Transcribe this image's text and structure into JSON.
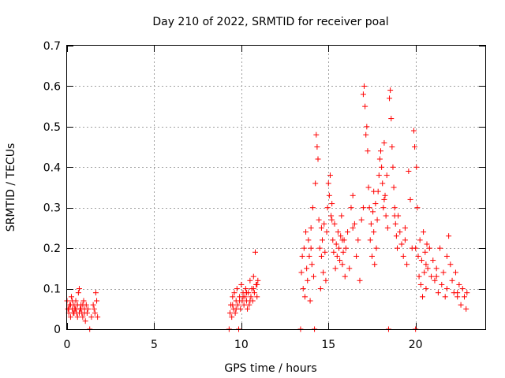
{
  "chart_data": {
    "type": "scatter",
    "title": "Day 210 of 2022, SRMTID for receiver poal",
    "xlabel": "GPS time / hours",
    "ylabel": "SRMTID / TECUs",
    "xlim": [
      0,
      24
    ],
    "ylim": [
      0,
      0.7
    ],
    "xticks": [
      0,
      5,
      10,
      15,
      20
    ],
    "yticks": [
      0,
      0.1,
      0.2,
      0.3,
      0.4,
      0.5,
      0.6,
      0.7
    ],
    "xtick_labels": [
      "0",
      "5",
      "10",
      "15",
      "20"
    ],
    "ytick_labels": [
      "0",
      "0.1",
      "0.2",
      "0.3",
      "0.4",
      "0.5",
      "0.6",
      "0.7"
    ],
    "grid": true,
    "marker": "+",
    "color": "#ff0000",
    "series": [
      {
        "name": "SRMTID",
        "points": [
          [
            0.0,
            0.07
          ],
          [
            0.05,
            0.05
          ],
          [
            0.1,
            0.04
          ],
          [
            0.15,
            0.06
          ],
          [
            0.2,
            0.03
          ],
          [
            0.25,
            0.08
          ],
          [
            0.3,
            0.05
          ],
          [
            0.35,
            0.04
          ],
          [
            0.4,
            0.06
          ],
          [
            0.45,
            0.05
          ],
          [
            0.5,
            0.07
          ],
          [
            0.55,
            0.04
          ],
          [
            0.6,
            0.03
          ],
          [
            0.65,
            0.09
          ],
          [
            0.7,
            0.1
          ],
          [
            0.75,
            0.05
          ],
          [
            0.8,
            0.06
          ],
          [
            0.85,
            0.04
          ],
          [
            0.9,
            0.03
          ],
          [
            0.95,
            0.07
          ],
          [
            1.0,
            0.05
          ],
          [
            1.05,
            0.02
          ],
          [
            1.1,
            0.06
          ],
          [
            1.15,
            0.04
          ],
          [
            1.2,
            0.05
          ],
          [
            1.3,
            0.0
          ],
          [
            1.4,
            0.03
          ],
          [
            1.5,
            0.06
          ],
          [
            1.55,
            0.05
          ],
          [
            1.6,
            0.04
          ],
          [
            1.65,
            0.09
          ],
          [
            1.7,
            0.07
          ],
          [
            1.75,
            0.03
          ],
          [
            0.1,
            0.05
          ],
          [
            0.2,
            0.06
          ],
          [
            0.3,
            0.07
          ],
          [
            0.4,
            0.04
          ],
          [
            0.5,
            0.05
          ],
          [
            0.6,
            0.06
          ],
          [
            0.7,
            0.04
          ],
          [
            0.8,
            0.05
          ],
          [
            0.9,
            0.06
          ],
          [
            1.0,
            0.04
          ],
          [
            9.3,
            0.0
          ],
          [
            9.35,
            0.04
          ],
          [
            9.4,
            0.06
          ],
          [
            9.45,
            0.03
          ],
          [
            9.5,
            0.08
          ],
          [
            9.55,
            0.05
          ],
          [
            9.6,
            0.09
          ],
          [
            9.65,
            0.04
          ],
          [
            9.7,
            0.07
          ],
          [
            9.75,
            0.1
          ],
          [
            9.8,
            0.06
          ],
          [
            9.85,
            0.0
          ],
          [
            9.9,
            0.08
          ],
          [
            9.95,
            0.05
          ],
          [
            10.0,
            0.11
          ],
          [
            10.05,
            0.07
          ],
          [
            10.1,
            0.09
          ],
          [
            10.15,
            0.06
          ],
          [
            10.2,
            0.08
          ],
          [
            10.25,
            0.1
          ],
          [
            10.3,
            0.07
          ],
          [
            10.35,
            0.05
          ],
          [
            10.4,
            0.09
          ],
          [
            10.45,
            0.06
          ],
          [
            10.5,
            0.12
          ],
          [
            10.55,
            0.08
          ],
          [
            10.6,
            0.1
          ],
          [
            10.65,
            0.07
          ],
          [
            10.7,
            0.13
          ],
          [
            10.75,
            0.09
          ],
          [
            10.8,
            0.19
          ],
          [
            10.85,
            0.11
          ],
          [
            10.9,
            0.08
          ],
          [
            10.95,
            0.12
          ],
          [
            9.5,
            0.06
          ],
          [
            9.7,
            0.05
          ],
          [
            9.9,
            0.07
          ],
          [
            10.1,
            0.08
          ],
          [
            10.3,
            0.09
          ],
          [
            10.5,
            0.07
          ],
          [
            10.7,
            0.1
          ],
          [
            10.9,
            0.11
          ],
          [
            13.4,
            0.0
          ],
          [
            13.45,
            0.14
          ],
          [
            13.5,
            0.18
          ],
          [
            13.55,
            0.1
          ],
          [
            13.6,
            0.2
          ],
          [
            13.65,
            0.08
          ],
          [
            13.7,
            0.24
          ],
          [
            13.75,
            0.15
          ],
          [
            13.8,
            0.12
          ],
          [
            13.85,
            0.22
          ],
          [
            13.9,
            0.18
          ],
          [
            13.95,
            0.07
          ],
          [
            14.0,
            0.25
          ],
          [
            14.05,
            0.16
          ],
          [
            14.1,
            0.3
          ],
          [
            14.15,
            0.13
          ],
          [
            14.2,
            0.0
          ],
          [
            14.25,
            0.36
          ],
          [
            14.3,
            0.48
          ],
          [
            14.35,
            0.45
          ],
          [
            14.4,
            0.42
          ],
          [
            14.45,
            0.27
          ],
          [
            14.5,
            0.2
          ],
          [
            14.55,
            0.1
          ],
          [
            14.6,
            0.18
          ],
          [
            14.65,
            0.22
          ],
          [
            14.7,
            0.14
          ],
          [
            14.75,
            0.26
          ],
          [
            14.8,
            0.19
          ],
          [
            14.85,
            0.12
          ],
          [
            14.9,
            0.24
          ],
          [
            14.95,
            0.3
          ],
          [
            15.0,
            0.36
          ],
          [
            15.05,
            0.33
          ],
          [
            15.1,
            0.38
          ],
          [
            15.15,
            0.28
          ],
          [
            15.2,
            0.31
          ],
          [
            15.25,
            0.22
          ],
          [
            15.3,
            0.19
          ],
          [
            15.35,
            0.26
          ],
          [
            15.4,
            0.15
          ],
          [
            15.45,
            0.21
          ],
          [
            15.5,
            0.18
          ],
          [
            15.55,
            0.24
          ],
          [
            15.6,
            0.2
          ],
          [
            15.65,
            0.17
          ],
          [
            15.7,
            0.23
          ],
          [
            15.75,
            0.28
          ],
          [
            15.8,
            0.16
          ],
          [
            15.85,
            0.19
          ],
          [
            15.9,
            0.22
          ],
          [
            15.95,
            0.13
          ],
          [
            16.0,
            0.2
          ],
          [
            16.1,
            0.24
          ],
          [
            16.2,
            0.15
          ],
          [
            16.3,
            0.3
          ],
          [
            16.4,
            0.33
          ],
          [
            16.5,
            0.26
          ],
          [
            16.6,
            0.18
          ],
          [
            16.7,
            0.22
          ],
          [
            16.8,
            0.12
          ],
          [
            16.9,
            0.27
          ],
          [
            17.0,
            0.58
          ],
          [
            17.05,
            0.6
          ],
          [
            17.1,
            0.55
          ],
          [
            17.15,
            0.48
          ],
          [
            17.2,
            0.5
          ],
          [
            17.25,
            0.44
          ],
          [
            17.3,
            0.35
          ],
          [
            17.35,
            0.3
          ],
          [
            17.4,
            0.22
          ],
          [
            17.45,
            0.26
          ],
          [
            17.5,
            0.18
          ],
          [
            17.55,
            0.29
          ],
          [
            17.6,
            0.24
          ],
          [
            17.65,
            0.16
          ],
          [
            17.7,
            0.31
          ],
          [
            17.75,
            0.2
          ],
          [
            17.8,
            0.27
          ],
          [
            17.85,
            0.34
          ],
          [
            17.9,
            0.38
          ],
          [
            17.95,
            0.42
          ],
          [
            18.0,
            0.44
          ],
          [
            18.05,
            0.4
          ],
          [
            18.1,
            0.36
          ],
          [
            18.15,
            0.3
          ],
          [
            18.2,
            0.46
          ],
          [
            18.25,
            0.33
          ],
          [
            18.3,
            0.28
          ],
          [
            18.35,
            0.38
          ],
          [
            18.4,
            0.25
          ],
          [
            18.45,
            0.0
          ],
          [
            18.5,
            0.57
          ],
          [
            18.55,
            0.59
          ],
          [
            18.6,
            0.52
          ],
          [
            18.65,
            0.45
          ],
          [
            18.7,
            0.4
          ],
          [
            18.75,
            0.35
          ],
          [
            18.8,
            0.3
          ],
          [
            18.85,
            0.26
          ],
          [
            18.9,
            0.23
          ],
          [
            18.95,
            0.2
          ],
          [
            19.0,
            0.28
          ],
          [
            19.1,
            0.24
          ],
          [
            19.2,
            0.21
          ],
          [
            19.3,
            0.18
          ],
          [
            19.4,
            0.25
          ],
          [
            19.5,
            0.16
          ],
          [
            19.6,
            0.39
          ],
          [
            19.7,
            0.32
          ],
          [
            19.8,
            0.2
          ],
          [
            19.9,
            0.49
          ],
          [
            19.95,
            0.45
          ],
          [
            20.0,
            0.0
          ],
          [
            20.05,
            0.4
          ],
          [
            20.1,
            0.3
          ],
          [
            20.15,
            0.18
          ],
          [
            20.2,
            0.13
          ],
          [
            20.25,
            0.22
          ],
          [
            20.3,
            0.11
          ],
          [
            20.35,
            0.17
          ],
          [
            20.4,
            0.08
          ],
          [
            20.45,
            0.24
          ],
          [
            20.5,
            0.14
          ],
          [
            20.55,
            0.19
          ],
          [
            20.6,
            0.1
          ],
          [
            20.65,
            0.21
          ],
          [
            20.7,
            0.15
          ],
          [
            20.8,
            0.2
          ],
          [
            20.9,
            0.13
          ],
          [
            21.0,
            0.17
          ],
          [
            21.1,
            0.12
          ],
          [
            21.2,
            0.15
          ],
          [
            21.3,
            0.09
          ],
          [
            21.4,
            0.2
          ],
          [
            21.5,
            0.11
          ],
          [
            21.6,
            0.14
          ],
          [
            21.7,
            0.08
          ],
          [
            21.8,
            0.18
          ],
          [
            21.9,
            0.23
          ],
          [
            22.0,
            0.16
          ],
          [
            22.1,
            0.12
          ],
          [
            22.2,
            0.09
          ],
          [
            22.3,
            0.14
          ],
          [
            22.4,
            0.08
          ],
          [
            22.5,
            0.11
          ],
          [
            22.6,
            0.06
          ],
          [
            22.7,
            0.1
          ],
          [
            22.8,
            0.08
          ],
          [
            22.9,
            0.05
          ],
          [
            22.95,
            0.09
          ],
          [
            14.0,
            0.2
          ],
          [
            14.6,
            0.25
          ],
          [
            15.2,
            0.27
          ],
          [
            15.8,
            0.22
          ],
          [
            16.4,
            0.25
          ],
          [
            17.0,
            0.3
          ],
          [
            17.6,
            0.34
          ],
          [
            18.2,
            0.32
          ],
          [
            18.8,
            0.28
          ],
          [
            19.4,
            0.22
          ],
          [
            20.0,
            0.2
          ],
          [
            20.6,
            0.16
          ],
          [
            21.2,
            0.13
          ],
          [
            21.8,
            0.1
          ],
          [
            22.4,
            0.09
          ]
        ]
      }
    ]
  }
}
